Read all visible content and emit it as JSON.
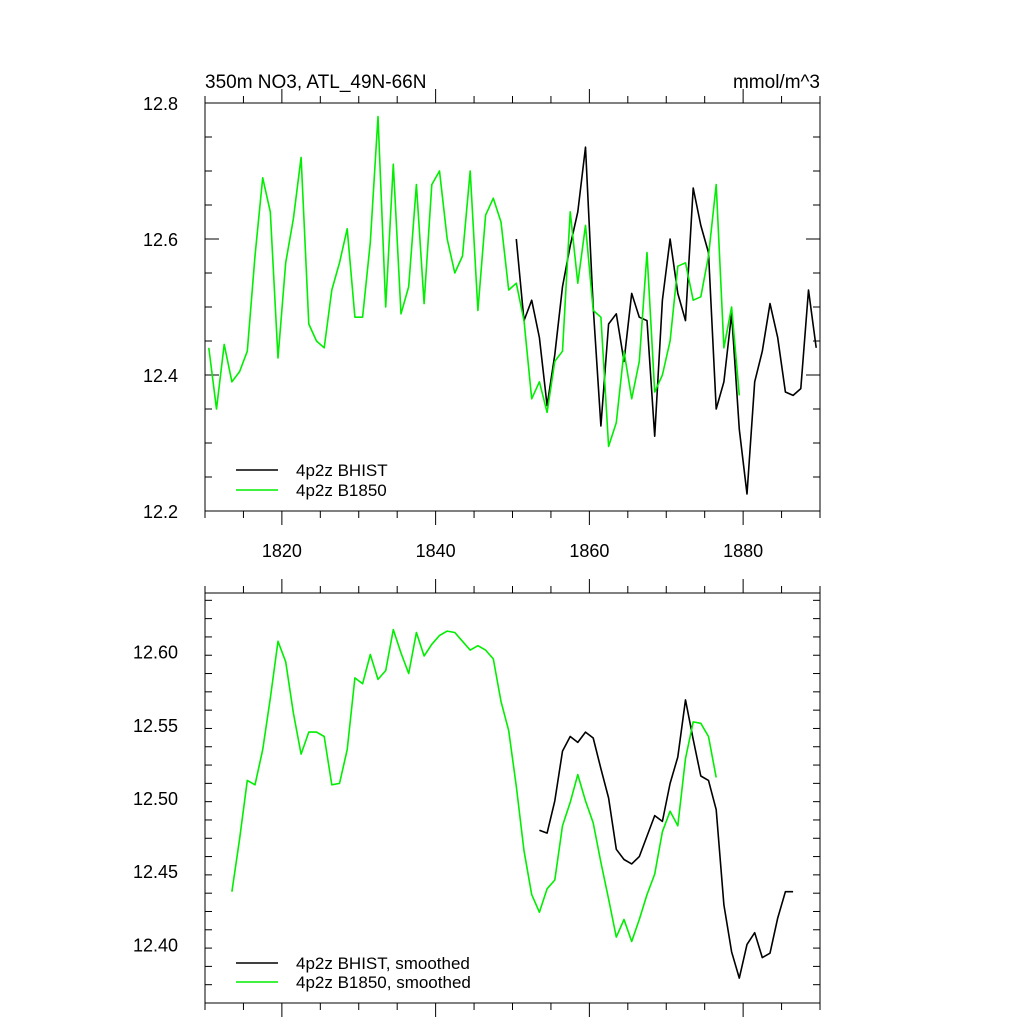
{
  "colors": {
    "bhist": "#000000",
    "b1850": "#00ee00"
  },
  "chart_data": [
    {
      "type": "line",
      "title_left": "350m NO3, ATL_49N-66N",
      "title_right": "mmol/m^3",
      "xlim": [
        1810,
        1890
      ],
      "ylim": [
        12.2,
        12.8
      ],
      "xticks": [
        1820,
        1840,
        1860,
        1880
      ],
      "xtick_labels": [
        "1820",
        "1840",
        "1860",
        "1880"
      ],
      "yticks": [
        12.2,
        12.4,
        12.6,
        12.8
      ],
      "ytick_labels": [
        "12.2",
        "12.4",
        "12.6",
        "12.8"
      ],
      "legend_position": "bottom-left",
      "series": [
        {
          "name": "4p2z BHIST",
          "color": "#000000",
          "x": [
            1850.5,
            1851.5,
            1852.5,
            1853.5,
            1854.5,
            1855.5,
            1856.5,
            1857.5,
            1858.5,
            1859.5,
            1860.5,
            1861.5,
            1862.5,
            1863.5,
            1864.5,
            1865.5,
            1866.5,
            1867.5,
            1868.5,
            1869.5,
            1870.5,
            1871.5,
            1872.5,
            1873.5,
            1874.5,
            1875.5,
            1876.5,
            1877.5,
            1878.5,
            1879.5,
            1880.5,
            1881.5,
            1882.5,
            1883.5,
            1884.5,
            1885.5,
            1886.5,
            1887.5,
            1888.5,
            1889.5
          ],
          "y": [
            12.6,
            12.48,
            12.51,
            12.455,
            12.355,
            12.43,
            12.53,
            12.59,
            12.64,
            12.735,
            12.5,
            12.325,
            12.475,
            12.49,
            12.42,
            12.52,
            12.485,
            12.48,
            12.31,
            12.51,
            12.6,
            12.52,
            12.48,
            12.675,
            12.62,
            12.58,
            12.35,
            12.39,
            12.49,
            12.32,
            12.225,
            12.39,
            12.435,
            12.505,
            12.455,
            12.375,
            12.37,
            12.38,
            12.525,
            12.44
          ]
        },
        {
          "name": "4p2z B1850",
          "color": "#00ee00",
          "x": [
            1810.5,
            1811.5,
            1812.5,
            1813.5,
            1814.5,
            1815.5,
            1816.5,
            1817.5,
            1818.5,
            1819.5,
            1820.5,
            1821.5,
            1822.5,
            1823.5,
            1824.5,
            1825.5,
            1826.5,
            1827.5,
            1828.5,
            1829.5,
            1830.5,
            1831.5,
            1832.5,
            1833.5,
            1834.5,
            1835.5,
            1836.5,
            1837.5,
            1838.5,
            1839.5,
            1840.5,
            1841.5,
            1842.5,
            1843.5,
            1844.5,
            1845.5,
            1846.5,
            1847.5,
            1848.5,
            1849.5,
            1850.5,
            1851.5,
            1852.5,
            1853.5,
            1854.5,
            1855.5,
            1856.5,
            1857.5,
            1858.5,
            1859.5,
            1860.5,
            1861.5,
            1862.5,
            1863.5,
            1864.5,
            1865.5,
            1866.5,
            1867.5,
            1868.5,
            1869.5,
            1870.5,
            1871.5,
            1872.5,
            1873.5,
            1874.5,
            1875.5,
            1876.5,
            1877.5,
            1878.5,
            1879.5
          ],
          "y": [
            12.44,
            12.35,
            12.445,
            12.39,
            12.405,
            12.435,
            12.575,
            12.69,
            12.64,
            12.425,
            12.565,
            12.63,
            12.72,
            12.475,
            12.45,
            12.44,
            12.525,
            12.565,
            12.615,
            12.485,
            12.485,
            12.595,
            12.78,
            12.5,
            12.71,
            12.49,
            12.53,
            12.68,
            12.505,
            12.68,
            12.7,
            12.6,
            12.55,
            12.575,
            12.7,
            12.495,
            12.635,
            12.66,
            12.625,
            12.525,
            12.535,
            12.48,
            12.365,
            12.39,
            12.345,
            12.42,
            12.435,
            12.64,
            12.535,
            12.62,
            12.495,
            12.485,
            12.295,
            12.33,
            12.435,
            12.365,
            12.42,
            12.58,
            12.375,
            12.4,
            12.45,
            12.56,
            12.565,
            12.51,
            12.515,
            12.575,
            12.68,
            12.44,
            12.5,
            12.37
          ]
        }
      ]
    },
    {
      "type": "line",
      "xlim": [
        1810,
        1890
      ],
      "ylim": [
        12.36,
        12.64
      ],
      "xticks": [
        1820,
        1840,
        1860,
        1880
      ],
      "yticks": [
        12.4,
        12.45,
        12.5,
        12.55,
        12.6
      ],
      "ytick_labels": [
        "12.40",
        "12.45",
        "12.50",
        "12.55",
        "12.60"
      ],
      "legend_position": "bottom-left",
      "series": [
        {
          "name": "4p2z BHIST, smoothed",
          "color": "#000000",
          "x": [
            1853.5,
            1854.5,
            1855.5,
            1856.5,
            1857.5,
            1858.5,
            1859.5,
            1860.5,
            1861.5,
            1862.5,
            1863.5,
            1864.5,
            1865.5,
            1866.5,
            1867.5,
            1868.5,
            1869.5,
            1870.5,
            1871.5,
            1872.5,
            1873.5,
            1874.5,
            1875.5,
            1876.5,
            1877.5,
            1878.5,
            1879.5,
            1880.5,
            1881.5,
            1882.5,
            1883.5,
            1884.5,
            1885.5,
            1886.5
          ],
          "y": [
            12.478,
            12.476,
            12.498,
            12.532,
            12.542,
            12.538,
            12.545,
            12.541,
            12.52,
            12.5,
            12.465,
            12.458,
            12.455,
            12.46,
            12.474,
            12.488,
            12.484,
            12.51,
            12.528,
            12.567,
            12.54,
            12.515,
            12.512,
            12.492,
            12.427,
            12.395,
            12.377,
            12.4,
            12.408,
            12.391,
            12.394,
            12.418,
            12.436,
            12.436
          ]
        },
        {
          "name": "4p2z B1850, smoothed",
          "color": "#00ee00",
          "x": [
            1813.5,
            1814.5,
            1815.5,
            1816.5,
            1817.5,
            1818.5,
            1819.5,
            1820.5,
            1821.5,
            1822.5,
            1823.5,
            1824.5,
            1825.5,
            1826.5,
            1827.5,
            1828.5,
            1829.5,
            1830.5,
            1831.5,
            1832.5,
            1833.5,
            1834.5,
            1835.5,
            1836.5,
            1837.5,
            1838.5,
            1839.5,
            1840.5,
            1841.5,
            1842.5,
            1843.5,
            1844.5,
            1845.5,
            1846.5,
            1847.5,
            1848.5,
            1849.5,
            1850.5,
            1851.5,
            1852.5,
            1853.5,
            1854.5,
            1855.5,
            1856.5,
            1857.5,
            1858.5,
            1859.5,
            1860.5,
            1861.5,
            1862.5,
            1863.5,
            1864.5,
            1865.5,
            1866.5,
            1867.5,
            1868.5,
            1869.5,
            1870.5,
            1871.5,
            1872.5,
            1873.5,
            1874.5,
            1875.5,
            1876.5
          ],
          "y": [
            12.436,
            12.472,
            12.512,
            12.509,
            12.533,
            12.568,
            12.607,
            12.593,
            12.558,
            12.53,
            12.545,
            12.545,
            12.542,
            12.509,
            12.51,
            12.533,
            12.582,
            12.578,
            12.598,
            12.581,
            12.587,
            12.615,
            12.599,
            12.585,
            12.613,
            12.597,
            12.605,
            12.611,
            12.614,
            12.613,
            12.607,
            12.601,
            12.604,
            12.601,
            12.595,
            12.566,
            12.546,
            12.508,
            12.464,
            12.434,
            12.422,
            12.438,
            12.444,
            12.481,
            12.497,
            12.516,
            12.498,
            12.483,
            12.456,
            12.431,
            12.405,
            12.417,
            12.402,
            12.417,
            12.434,
            12.448,
            12.477,
            12.491,
            12.481,
            12.527,
            12.552,
            12.551,
            12.542,
            12.514
          ]
        }
      ]
    }
  ]
}
